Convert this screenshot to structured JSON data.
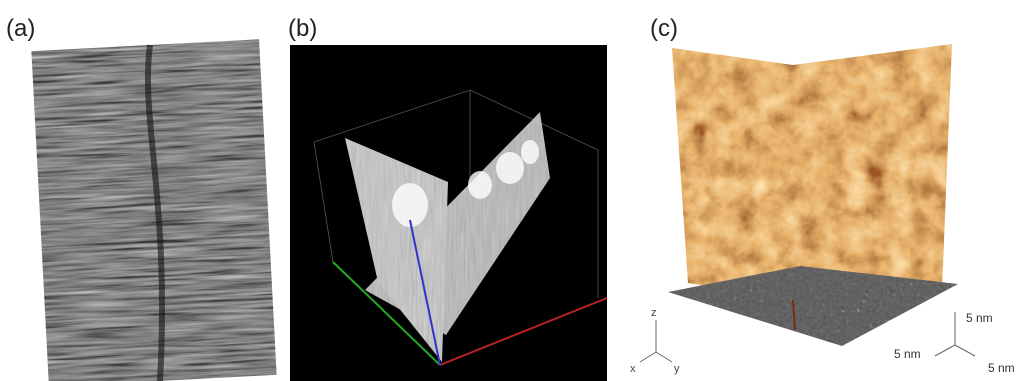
{
  "panels": [
    {
      "label": "(a)"
    },
    {
      "label": "(b)"
    },
    {
      "label": "(c)",
      "axes": {
        "z": "z",
        "x": "x",
        "y": "y"
      },
      "scale": [
        "5 nm",
        "5 nm",
        "5 nm"
      ]
    }
  ]
}
